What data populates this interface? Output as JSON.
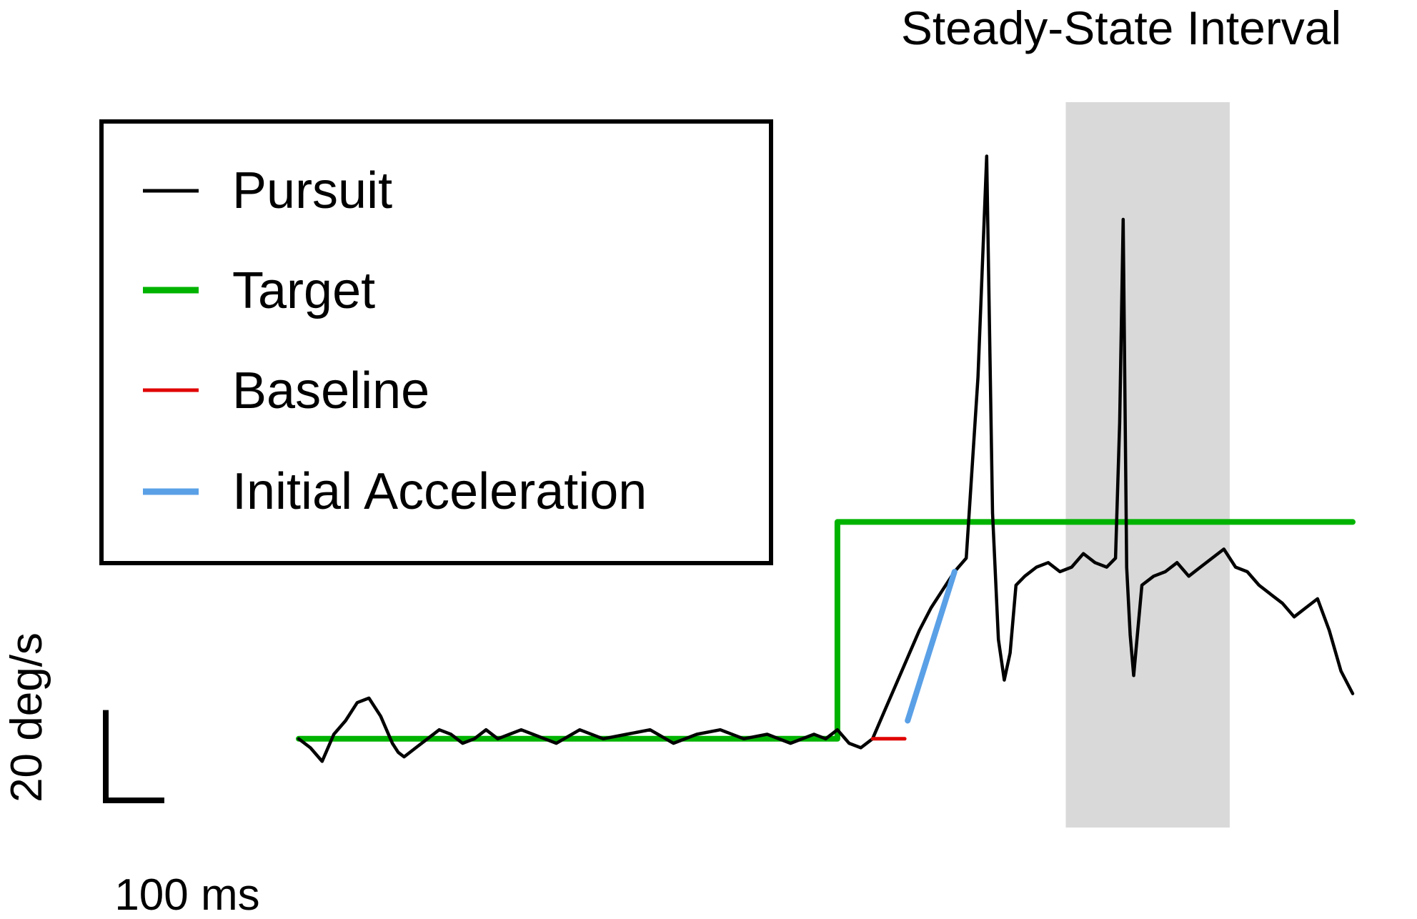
{
  "chart_data": {
    "type": "line",
    "title": "",
    "xlabel": "",
    "ylabel": "",
    "x_unit": "ms",
    "y_unit": "deg/s",
    "grid": false,
    "legend_placement": "top-left",
    "xlim": [
      0,
      1800
    ],
    "ylim": [
      -10,
      140
    ],
    "shaded_interval": {
      "label": "Steady-State Interval",
      "x": [
        1310,
        1590
      ],
      "color": "#d9d9d9"
    },
    "scale_bar": {
      "x_label": "100 ms",
      "x_value": 100,
      "y_label": "20 deg/s",
      "y_value": 20
    },
    "colors": {
      "pursuit": "#000000",
      "target": "#00b300",
      "baseline": "#e00000",
      "initial_acceleration": "#5aa0e6",
      "shading": "#d9d9d9",
      "frame": "#000000"
    },
    "series": [
      {
        "name": "Pursuit",
        "color": "#000000",
        "x": [
          0,
          20,
          40,
          60,
          80,
          100,
          120,
          140,
          160,
          170,
          180,
          200,
          220,
          240,
          260,
          280,
          300,
          320,
          340,
          360,
          380,
          400,
          440,
          480,
          520,
          560,
          600,
          640,
          680,
          720,
          760,
          800,
          840,
          880,
          900,
          920,
          940,
          960,
          980,
          1000,
          1020,
          1040,
          1060,
          1080,
          1100,
          1120,
          1140,
          1160,
          1175,
          1185,
          1195,
          1205,
          1215,
          1225,
          1240,
          1260,
          1280,
          1300,
          1320,
          1340,
          1360,
          1380,
          1395,
          1402,
          1408,
          1414,
          1420,
          1426,
          1440,
          1460,
          1480,
          1500,
          1520,
          1540,
          1560,
          1580,
          1600,
          1620,
          1640,
          1660,
          1680,
          1700,
          1720,
          1740,
          1760,
          1780,
          1800
        ],
        "y": [
          0,
          -2,
          -5,
          1,
          4,
          8,
          9,
          5,
          -1,
          -3,
          -4,
          -2,
          0,
          2,
          1,
          -1,
          0,
          2,
          0,
          1,
          2,
          1,
          -1,
          2,
          0,
          1,
          2,
          -1,
          1,
          2,
          0,
          1,
          -1,
          1,
          0,
          2,
          -1,
          -2,
          0,
          6,
          12,
          18,
          24,
          29,
          33,
          37,
          40,
          80,
          129,
          50,
          22,
          13,
          19,
          34,
          36,
          38,
          39,
          37,
          38,
          41,
          39,
          38,
          40,
          70,
          115,
          38,
          23,
          14,
          34,
          36,
          37,
          39,
          36,
          38,
          40,
          42,
          38,
          37,
          34,
          32,
          30,
          27,
          29,
          31,
          24,
          15,
          10
        ]
      },
      {
        "name": "Target",
        "color": "#00b300",
        "x": [
          0,
          920,
          920,
          1800
        ],
        "y": [
          0,
          0,
          48,
          48
        ]
      },
      {
        "name": "Baseline",
        "color": "#e00000",
        "x": [
          980,
          1035
        ],
        "y": [
          0,
          0
        ]
      },
      {
        "name": "Initial Acceleration",
        "color": "#5aa0e6",
        "x": [
          1040,
          1120
        ],
        "y": [
          4,
          37
        ]
      }
    ]
  }
}
